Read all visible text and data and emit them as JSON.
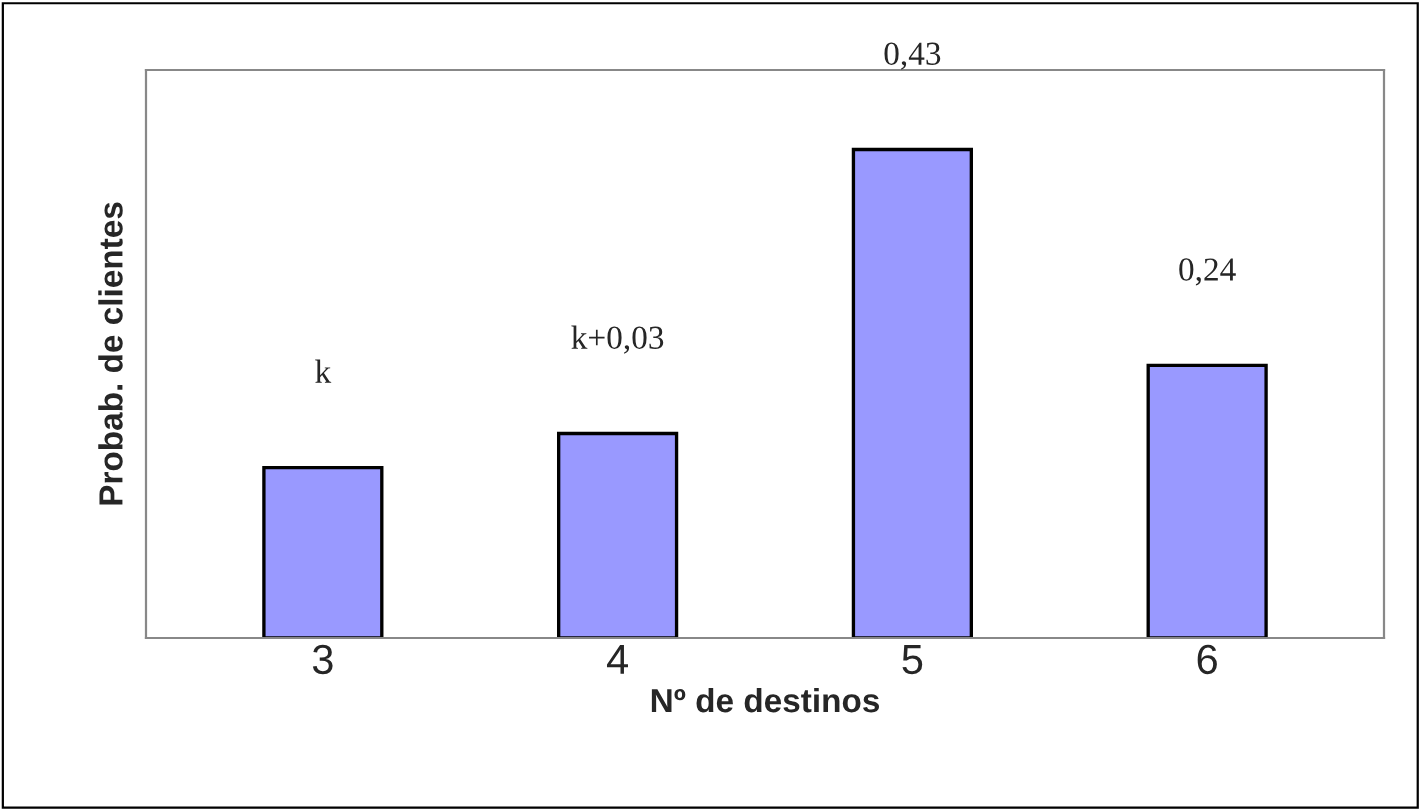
{
  "chart_data": {
    "type": "bar",
    "xlabel": "Nº de destinos",
    "ylabel": "Probab. de clientes",
    "categories": [
      "3",
      "4",
      "5",
      "6"
    ],
    "values": [
      0.15,
      0.18,
      0.43,
      0.24
    ],
    "value_labels": [
      "k",
      "k+0,03",
      "0,43",
      "0,24"
    ],
    "color": "#9999ff",
    "ylim": [
      0,
      0.5
    ],
    "tick_labels": "x",
    "grid": false,
    "legend": false
  }
}
